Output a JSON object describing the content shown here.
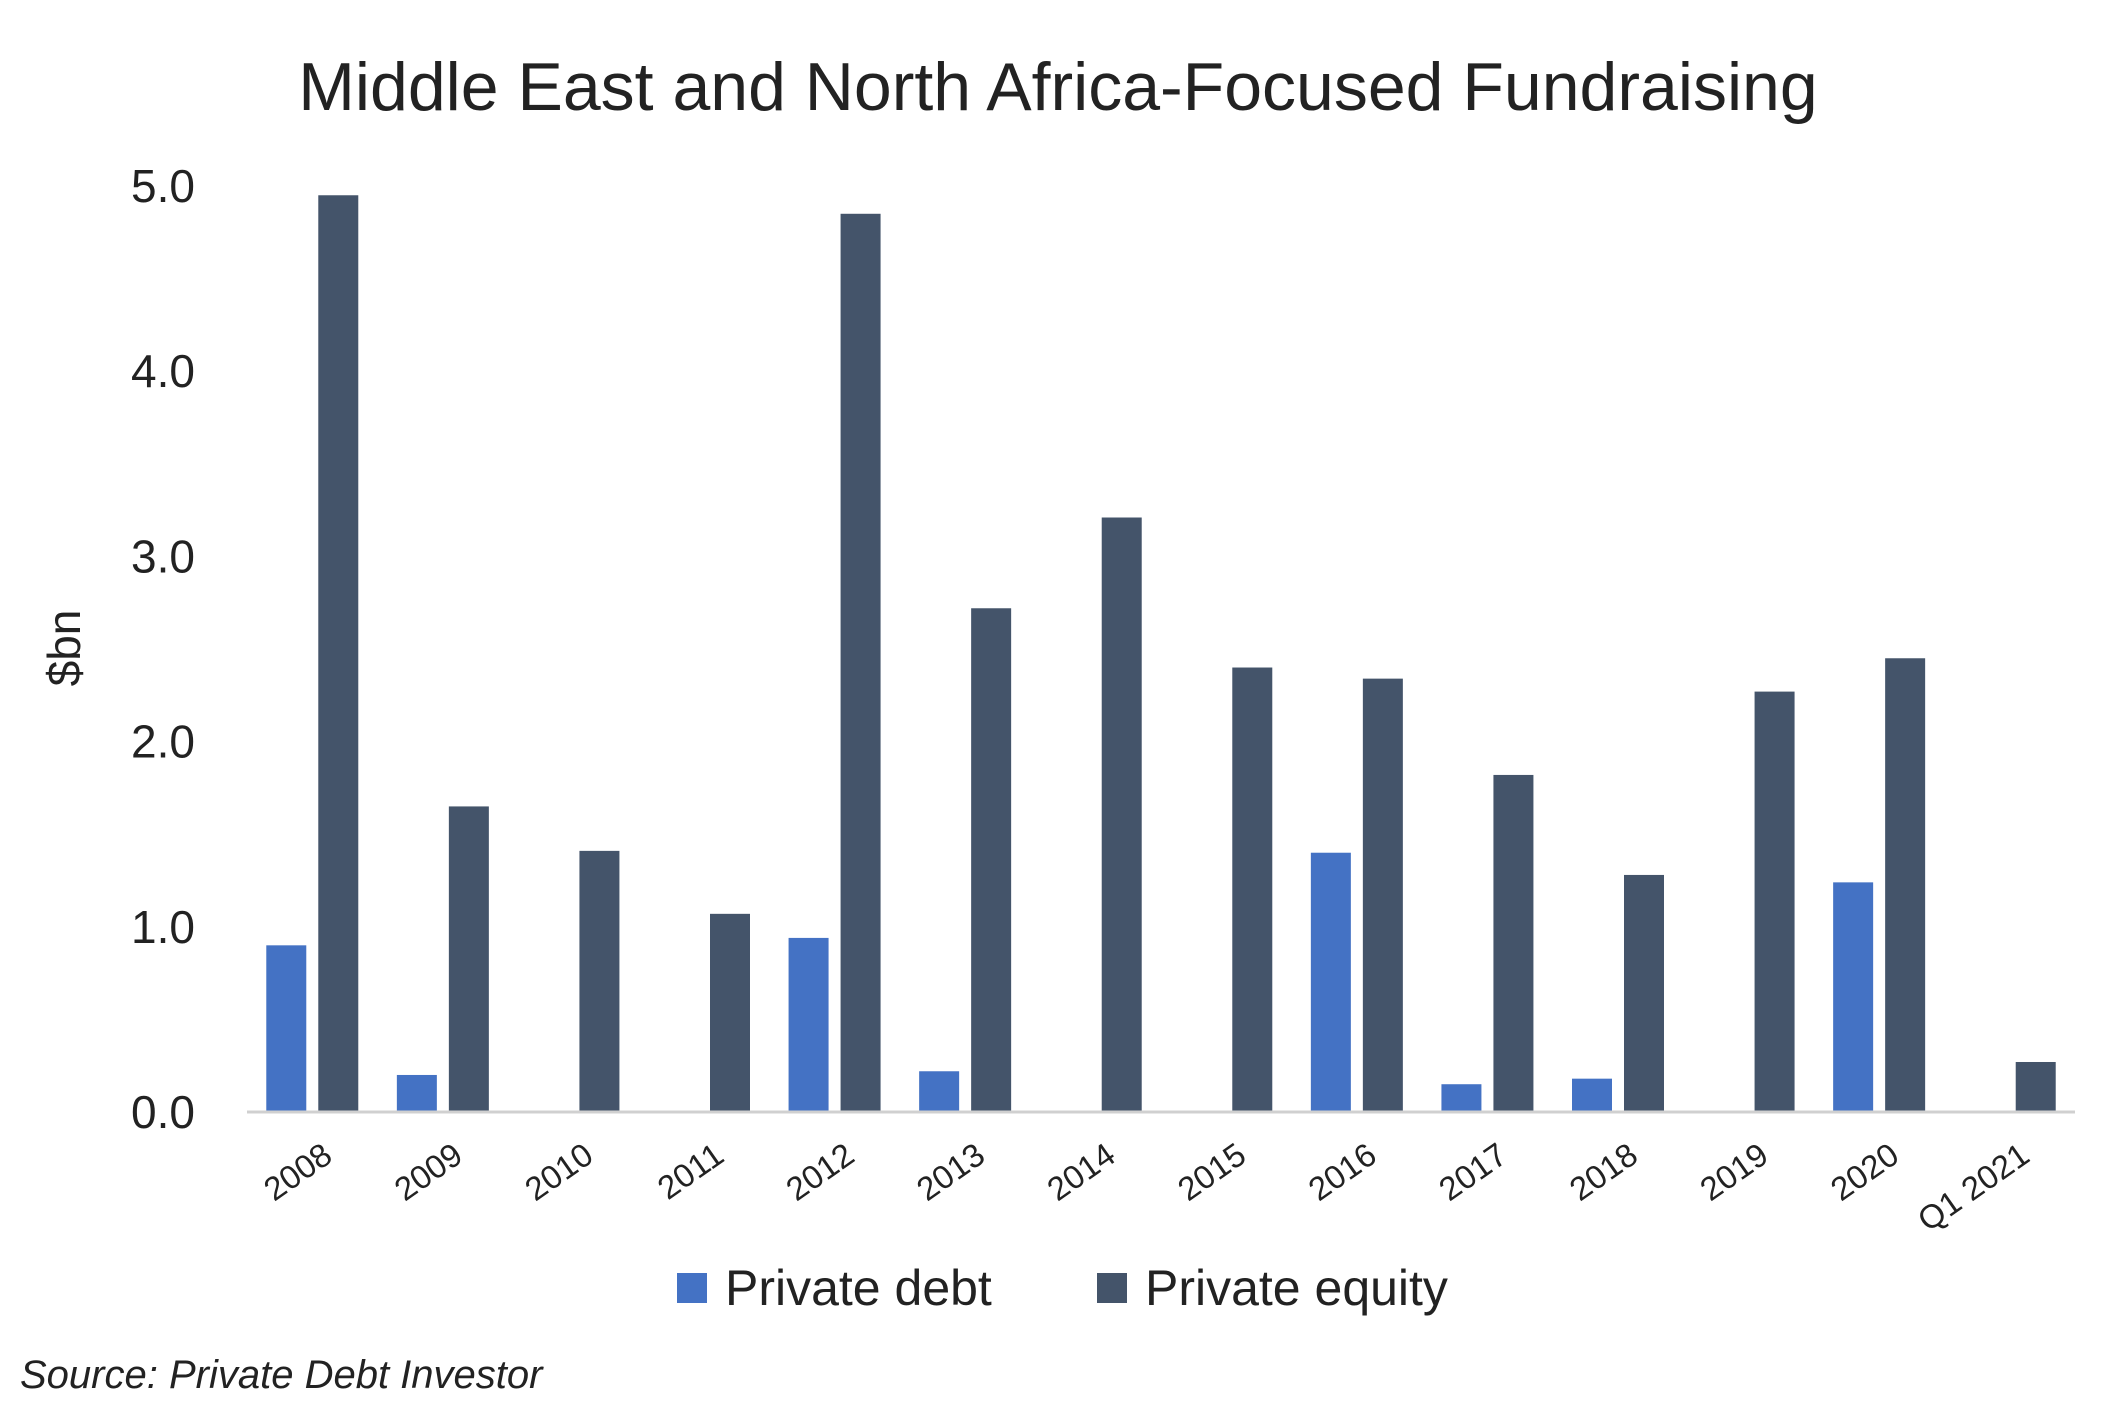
{
  "chart_data": {
    "type": "bar",
    "title": "Middle East and North Africa-Focused Fundraising",
    "xlabel": "",
    "ylabel": "$bn",
    "ylim": [
      0,
      5
    ],
    "yticks": [
      "0.0",
      "1.0",
      "2.0",
      "3.0",
      "4.0",
      "5.0"
    ],
    "categories": [
      "2008",
      "2009",
      "2010",
      "2011",
      "2012",
      "2013",
      "2014",
      "2015",
      "2016",
      "2017",
      "2018",
      "2019",
      "2020",
      "Q1 2021"
    ],
    "series": [
      {
        "name": "Private debt",
        "color": "#4472c4",
        "values": [
          0.9,
          0.2,
          0,
          0,
          0.94,
          0.22,
          0,
          0,
          1.4,
          0.15,
          0.18,
          0,
          1.24,
          0
        ]
      },
      {
        "name": "Private equity",
        "color": "#44546a",
        "values": [
          4.95,
          1.65,
          1.41,
          1.07,
          4.85,
          2.72,
          3.21,
          2.4,
          2.34,
          1.82,
          1.28,
          2.27,
          2.45,
          0.27
        ]
      }
    ],
    "legend_position": "bottom",
    "grid": false
  },
  "source": "Source: Private Debt Investor"
}
